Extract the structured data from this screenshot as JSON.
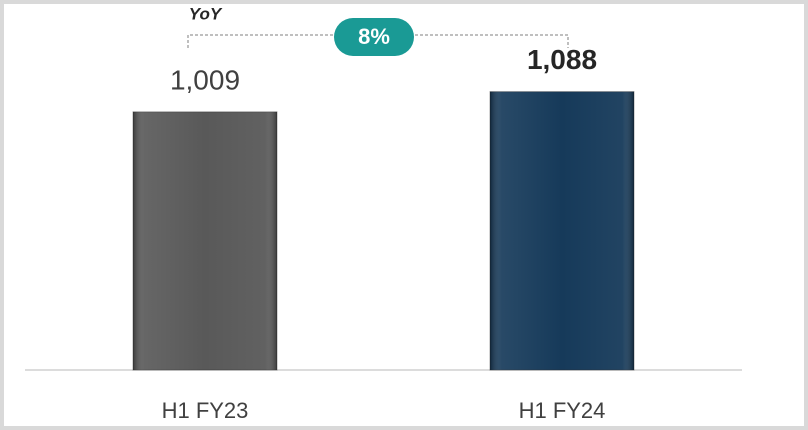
{
  "chart_data": {
    "type": "bar",
    "categories": [
      "H1 FY23",
      "H1 FY24"
    ],
    "values": [
      1009,
      1088
    ],
    "value_labels": [
      "1,009",
      "1,088"
    ],
    "colors": [
      "#595959",
      "#163a5a"
    ],
    "ylim": [
      0,
      1200
    ],
    "annotations": [
      "YoY",
      "8%"
    ],
    "annotation_color": "#1a9a95"
  }
}
